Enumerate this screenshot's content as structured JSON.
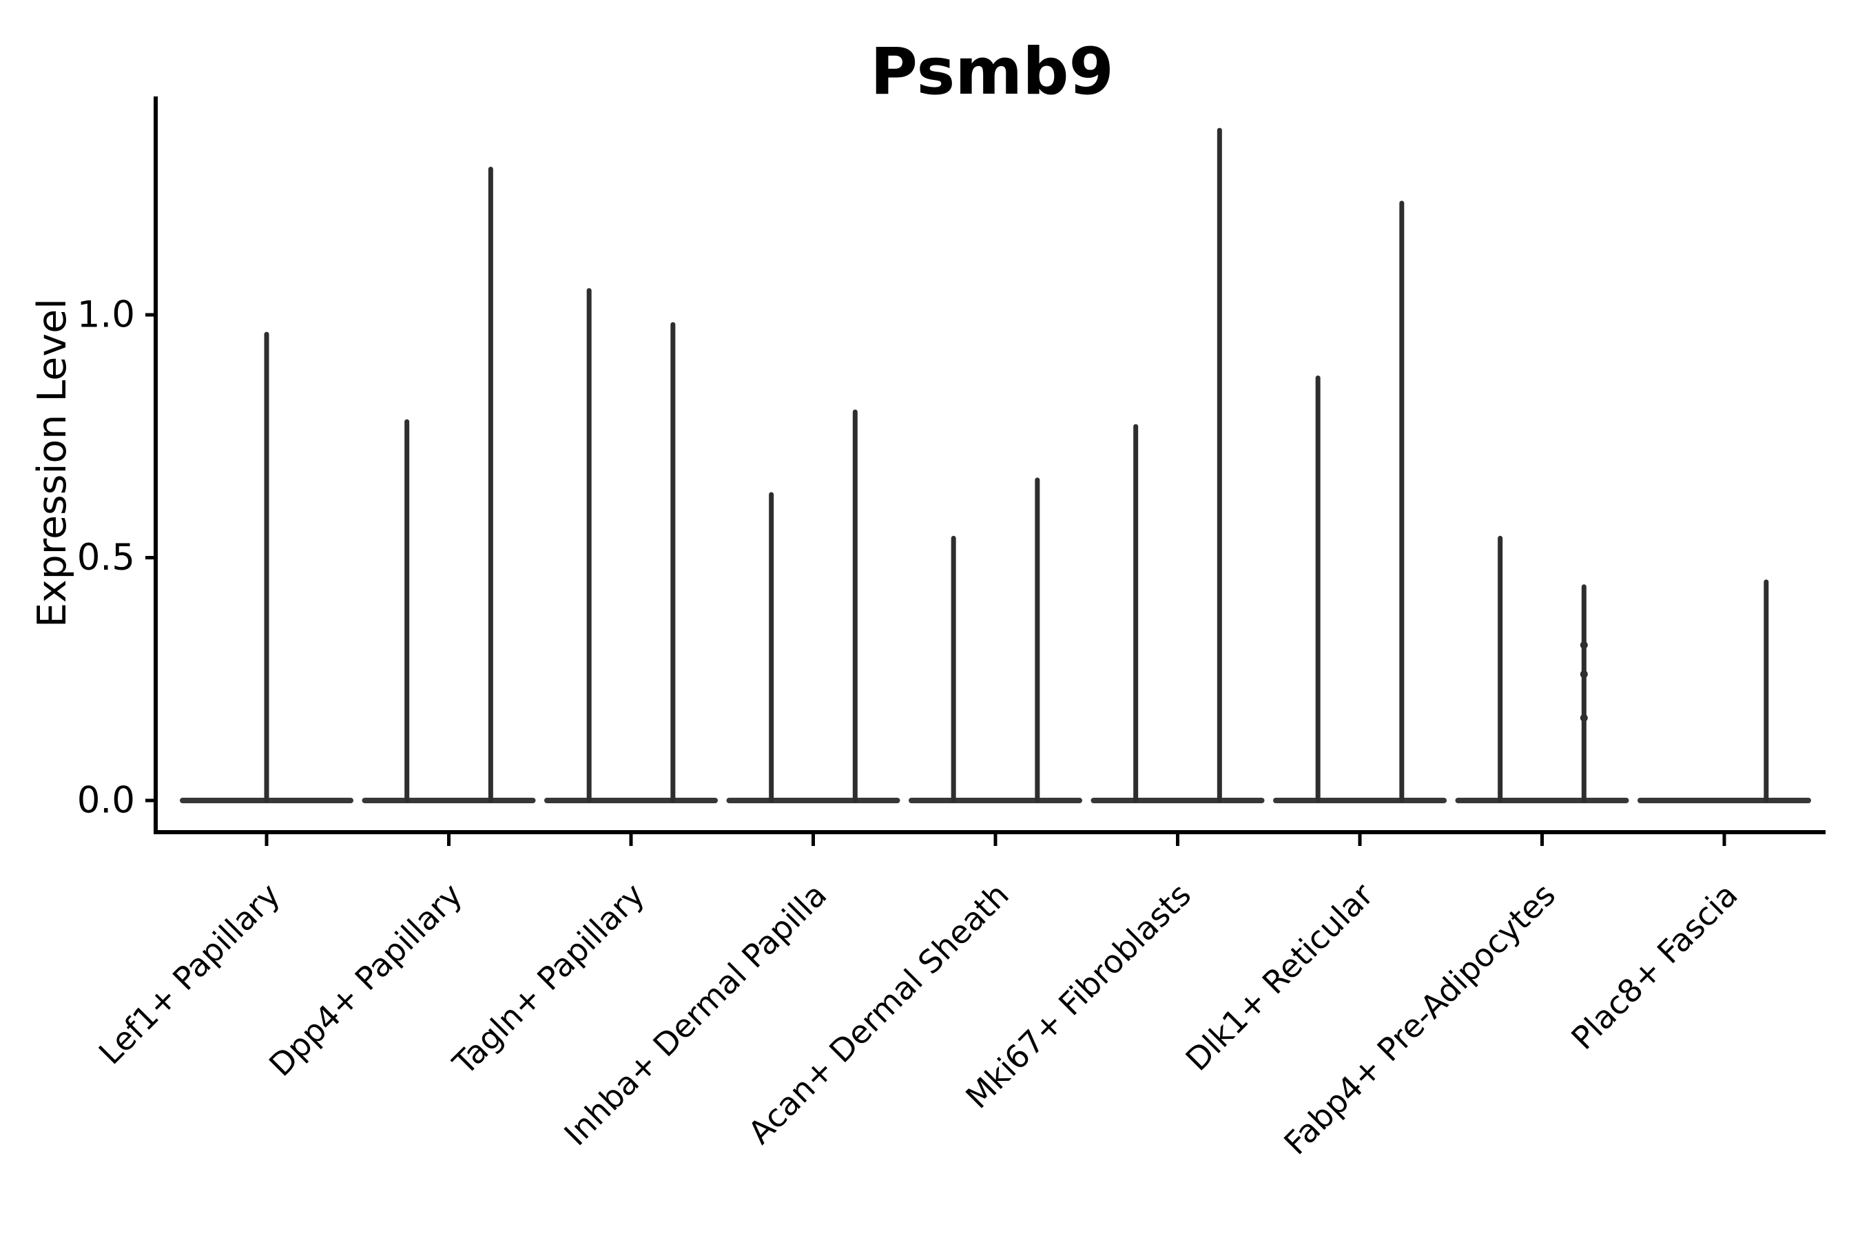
{
  "chart_data": {
    "type": "violin",
    "title": "Psmb9",
    "xlabel": "",
    "ylabel": "Expression Level",
    "ytick_labels": [
      "0.0",
      "0.5",
      "1.0"
    ],
    "ytick_values": [
      0.0,
      0.5,
      1.0
    ],
    "ylim": [
      -0.065,
      1.45
    ],
    "grid": false,
    "legend": null,
    "colors": {
      "violin_line": "#2e2e2e",
      "baseline": "#373737",
      "axis": "#000000",
      "text": "#000000",
      "background": "#ffffff"
    },
    "categories": [
      {
        "label": "Lef1+ Papillary",
        "spikes": [
          {
            "offset": 0.0,
            "height": 0.96
          }
        ]
      },
      {
        "label": "Dpp4+ Papillary",
        "spikes": [
          {
            "offset": -0.23,
            "height": 0.78
          },
          {
            "offset": 0.23,
            "height": 1.3
          }
        ]
      },
      {
        "label": "Tagln+ Papillary",
        "spikes": [
          {
            "offset": -0.23,
            "height": 1.05
          },
          {
            "offset": 0.23,
            "height": 0.98
          }
        ]
      },
      {
        "label": "Inhba+ Dermal Papilla",
        "spikes": [
          {
            "offset": -0.23,
            "height": 0.63
          },
          {
            "offset": 0.23,
            "height": 0.8
          }
        ]
      },
      {
        "label": "Acan+ Dermal Sheath",
        "spikes": [
          {
            "offset": -0.23,
            "height": 0.54
          },
          {
            "offset": 0.23,
            "height": 0.66
          }
        ]
      },
      {
        "label": "Mki67+ Fibroblasts",
        "spikes": [
          {
            "offset": -0.23,
            "height": 0.77
          },
          {
            "offset": 0.23,
            "height": 1.38
          }
        ]
      },
      {
        "label": "Dlk1+ Reticular",
        "spikes": [
          {
            "offset": -0.23,
            "height": 0.87
          },
          {
            "offset": 0.23,
            "height": 1.23
          }
        ]
      },
      {
        "label": "Fabp4+ Pre-Adipocytes",
        "spikes": [
          {
            "offset": -0.23,
            "height": 0.54
          },
          {
            "offset": 0.23,
            "height": 0.44,
            "dots": [
              0.32,
              0.26,
              0.17
            ]
          }
        ]
      },
      {
        "label": "Plac8+ Fascia",
        "spikes": [
          {
            "offset": 0.23,
            "height": 0.45
          }
        ]
      }
    ]
  }
}
